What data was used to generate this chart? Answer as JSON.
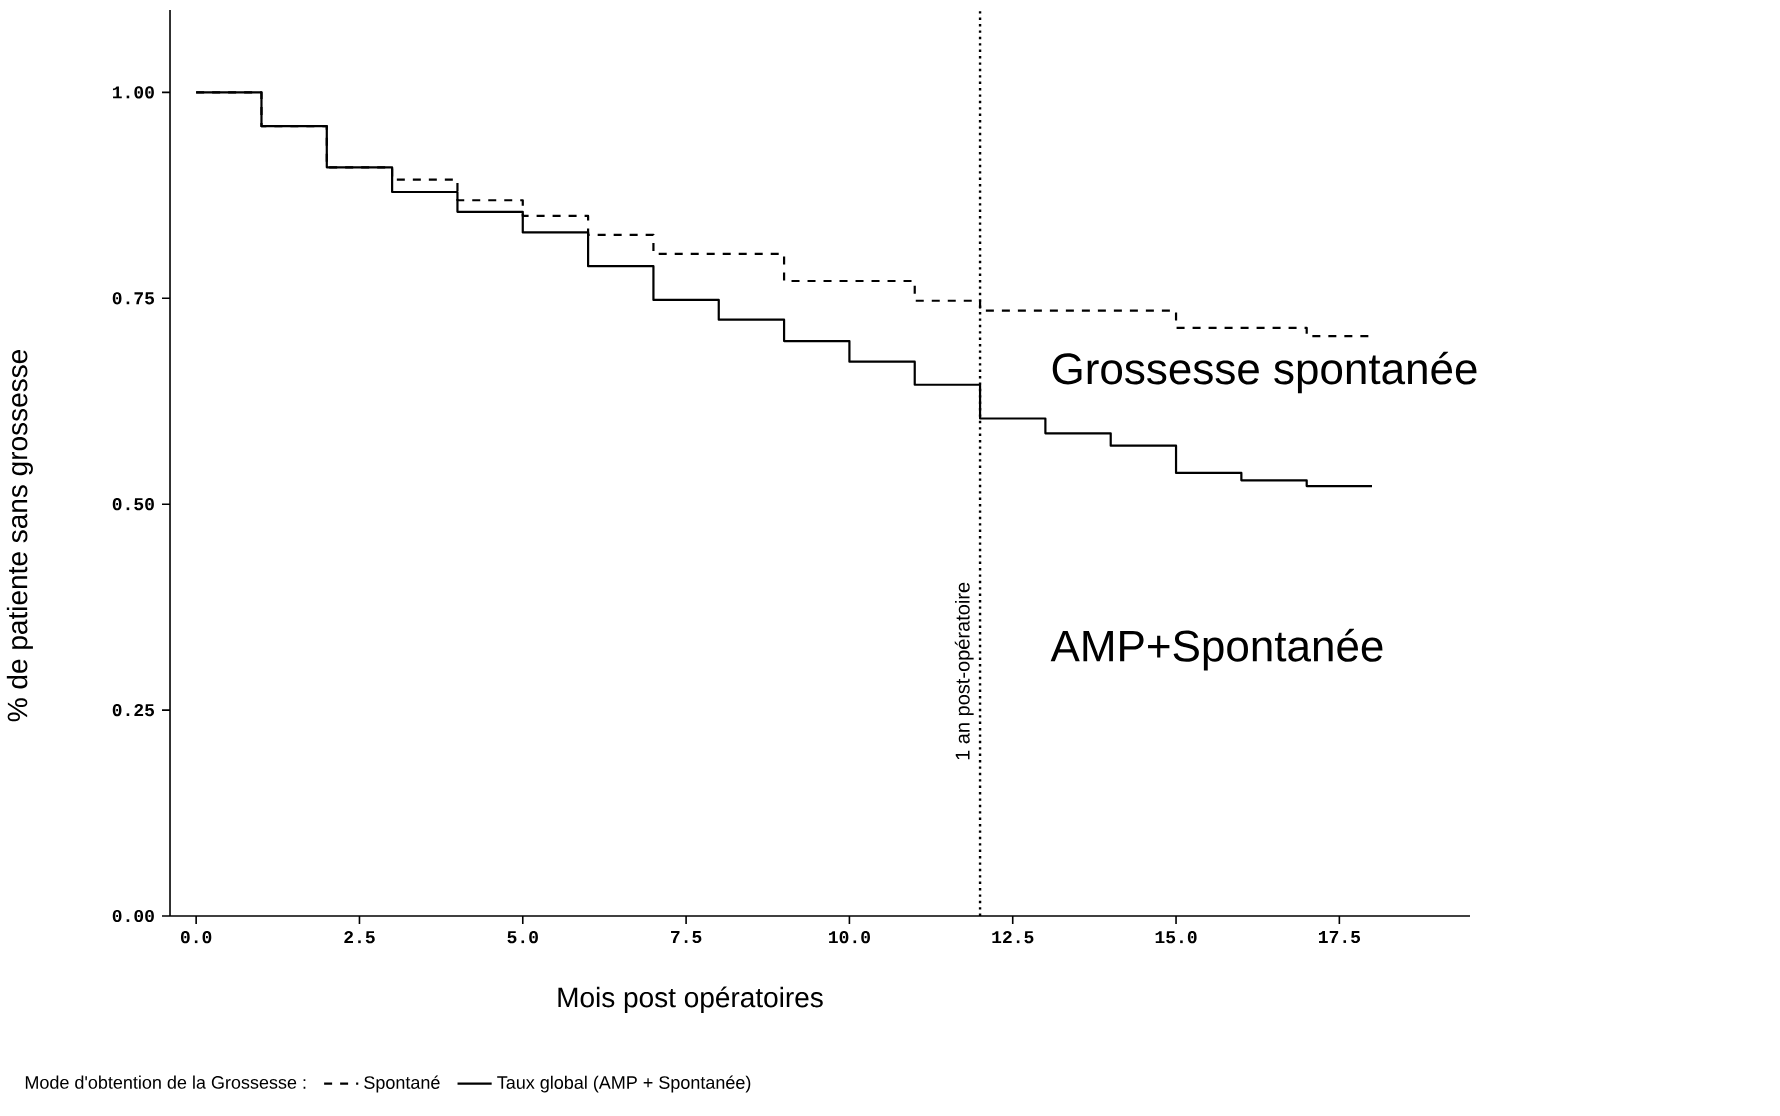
{
  "chart_data": {
    "type": "step",
    "xlabel": "Mois post opératoires",
    "ylabel": "% de patiente sans grossesse",
    "legend_title": "Mode d'obtention de la Grossesse :",
    "legend": "bottom",
    "series": [
      {
        "name": "Spontané",
        "color": "#000000",
        "line_style": "dashed",
        "x": [
          0,
          1,
          2,
          3,
          4,
          5,
          6,
          7,
          9,
          11,
          12,
          15,
          17,
          18
        ],
        "values": [
          1.0,
          0.959,
          0.909,
          0.894,
          0.869,
          0.85,
          0.827,
          0.804,
          0.771,
          0.747,
          0.735,
          0.714,
          0.704,
          0.704
        ]
      },
      {
        "name": "Taux global (AMP + Spontanée)",
        "color": "#000000",
        "line_style": "solid",
        "x": [
          0,
          1,
          2,
          3,
          4,
          5,
          6,
          7,
          8,
          9,
          10,
          11,
          12,
          13,
          14,
          15,
          16,
          17,
          18
        ],
        "values": [
          1.0,
          0.959,
          0.909,
          0.879,
          0.855,
          0.83,
          0.789,
          0.748,
          0.724,
          0.698,
          0.673,
          0.645,
          0.604,
          0.586,
          0.571,
          0.538,
          0.529,
          0.522,
          0.522
        ]
      }
    ],
    "xlim": [
      -0.4,
      19.5
    ],
    "ylim": [
      0,
      1.1
    ],
    "xticks": [
      {
        "value": 0,
        "label": "0.0"
      },
      {
        "value": 2.5,
        "label": "2.5"
      },
      {
        "value": 5,
        "label": "5.0"
      },
      {
        "value": 7.5,
        "label": "7.5"
      },
      {
        "value": 10,
        "label": "10.0"
      },
      {
        "value": 12.5,
        "label": "12.5"
      },
      {
        "value": 15,
        "label": "15.0"
      },
      {
        "value": 17.5,
        "label": "17.5"
      }
    ],
    "yticks": [
      {
        "value": 0,
        "label": "0.00"
      },
      {
        "value": 0.25,
        "label": "0.25"
      },
      {
        "value": 0.5,
        "label": "0.50"
      },
      {
        "value": 0.75,
        "label": "0.75"
      },
      {
        "value": 1,
        "label": "1.00"
      }
    ],
    "ref_lines": [
      {
        "axis": "x",
        "value": 12,
        "label": "1 an post-opératoire",
        "line_style": "dotted",
        "color": "#000000"
      }
    ],
    "annotations": [
      "Grossesse spontanée",
      "AMP+Spontanée"
    ]
  }
}
